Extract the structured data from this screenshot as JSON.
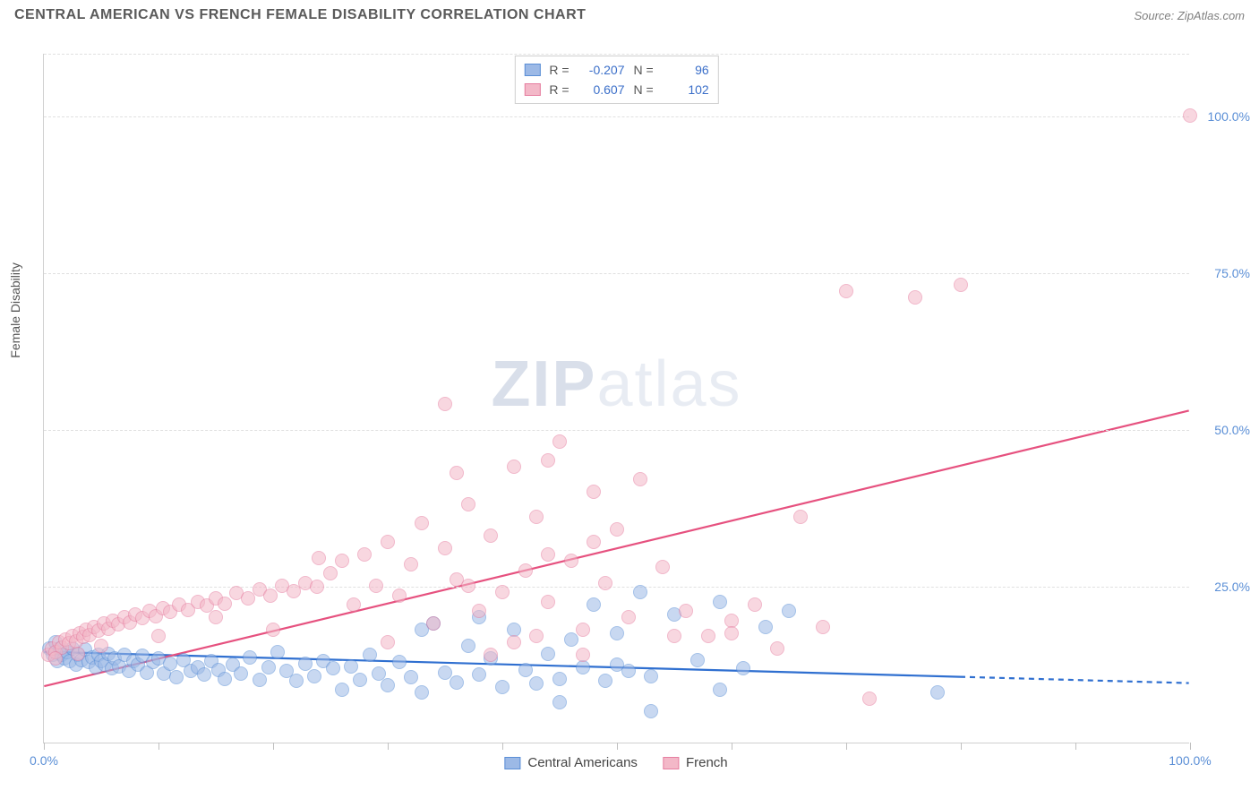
{
  "header": {
    "title": "CENTRAL AMERICAN VS FRENCH FEMALE DISABILITY CORRELATION CHART",
    "source": "Source: ZipAtlas.com"
  },
  "watermark": {
    "left": "ZIP",
    "right": "atlas"
  },
  "chart": {
    "type": "scatter",
    "background_color": "#ffffff",
    "grid_color": "#e0e0e0",
    "axis_color": "#d0d0d0",
    "tick_label_color": "#5b8fd6",
    "tick_fontsize": 14,
    "y_label": "Female Disability",
    "y_label_fontsize": 14,
    "xlim": [
      0,
      100
    ],
    "ylim": [
      0,
      110
    ],
    "x_ticks": [
      0,
      10,
      20,
      30,
      40,
      50,
      60,
      70,
      80,
      90,
      100
    ],
    "x_tick_labels": {
      "0": "0.0%",
      "100": "100.0%"
    },
    "y_ticks": [
      25,
      50,
      75,
      100
    ],
    "y_tick_labels": {
      "25": "25.0%",
      "50": "50.0%",
      "75": "75.0%",
      "100": "100.0%"
    },
    "marker_radius": 8,
    "marker_opacity": 0.55,
    "trend_line_width": 2.2,
    "series": [
      {
        "name": "Central Americans",
        "fill_color": "#9cb9e6",
        "stroke_color": "#5b8fd6",
        "line_color": "#2f6fd0",
        "R": "-0.207",
        "N": "96",
        "trend": {
          "x1": 0,
          "y1": 14.5,
          "x2": 80,
          "y2": 10.5,
          "dash_after_x": 80,
          "x3": 100,
          "y3": 9.5
        },
        "points": [
          [
            0.5,
            15
          ],
          [
            0.8,
            14
          ],
          [
            1,
            16
          ],
          [
            1.2,
            13
          ],
          [
            1.4,
            15
          ],
          [
            1.6,
            14
          ],
          [
            1.8,
            13.5
          ],
          [
            2,
            14.5
          ],
          [
            2.3,
            13
          ],
          [
            2.5,
            15
          ],
          [
            2.8,
            12.5
          ],
          [
            3,
            14
          ],
          [
            3.3,
            13.2
          ],
          [
            3.6,
            14.8
          ],
          [
            3.9,
            12.8
          ],
          [
            4.2,
            13.6
          ],
          [
            4.5,
            12
          ],
          [
            4.8,
            14
          ],
          [
            5,
            13
          ],
          [
            5.3,
            12.5
          ],
          [
            5.6,
            14.2
          ],
          [
            5.9,
            11.8
          ],
          [
            6.2,
            13.4
          ],
          [
            6.6,
            12.2
          ],
          [
            7,
            14
          ],
          [
            7.4,
            11.5
          ],
          [
            7.8,
            13
          ],
          [
            8.2,
            12.4
          ],
          [
            8.6,
            13.8
          ],
          [
            9,
            11.2
          ],
          [
            9.5,
            12.8
          ],
          [
            10,
            13.5
          ],
          [
            10.5,
            11
          ],
          [
            11,
            12.6
          ],
          [
            11.6,
            10.5
          ],
          [
            12.2,
            13.2
          ],
          [
            12.8,
            11.4
          ],
          [
            13.4,
            12
          ],
          [
            14,
            10.8
          ],
          [
            14.6,
            13
          ],
          [
            15.2,
            11.6
          ],
          [
            15.8,
            10.2
          ],
          [
            16.5,
            12.4
          ],
          [
            17.2,
            11
          ],
          [
            18,
            13.6
          ],
          [
            18.8,
            10
          ],
          [
            19.6,
            12
          ],
          [
            20.4,
            14.5
          ],
          [
            21.2,
            11.4
          ],
          [
            22,
            9.8
          ],
          [
            22.8,
            12.6
          ],
          [
            23.6,
            10.6
          ],
          [
            24.4,
            13
          ],
          [
            25.2,
            11.8
          ],
          [
            26,
            8.5
          ],
          [
            26.8,
            12.2
          ],
          [
            27.6,
            10
          ],
          [
            28.4,
            14
          ],
          [
            29.2,
            11
          ],
          [
            30,
            9.2
          ],
          [
            31,
            12.8
          ],
          [
            32,
            10.4
          ],
          [
            33,
            8
          ],
          [
            34,
            19
          ],
          [
            35,
            11.2
          ],
          [
            36,
            9.6
          ],
          [
            37,
            15.5
          ],
          [
            38,
            10.8
          ],
          [
            39,
            13.4
          ],
          [
            40,
            8.8
          ],
          [
            41,
            18
          ],
          [
            42,
            11.6
          ],
          [
            43,
            9.4
          ],
          [
            44,
            14.2
          ],
          [
            45,
            10.2
          ],
          [
            46,
            16.5
          ],
          [
            47,
            12
          ],
          [
            48,
            22
          ],
          [
            49,
            9.8
          ],
          [
            50,
            17.5
          ],
          [
            51,
            11.4
          ],
          [
            52,
            24
          ],
          [
            53,
            10.6
          ],
          [
            55,
            20.5
          ],
          [
            57,
            13.2
          ],
          [
            59,
            22.5
          ],
          [
            61,
            11.8
          ],
          [
            63,
            18.5
          ],
          [
            53,
            5
          ],
          [
            65,
            21
          ],
          [
            78,
            8
          ],
          [
            59,
            8.5
          ],
          [
            45,
            6.5
          ],
          [
            38,
            20
          ],
          [
            33,
            18
          ],
          [
            50,
            12.5
          ]
        ]
      },
      {
        "name": "French",
        "fill_color": "#f3b8c8",
        "stroke_color": "#e67ea0",
        "line_color": "#e6517f",
        "R": "0.607",
        "N": "102",
        "trend": {
          "x1": 0,
          "y1": 9,
          "x2": 100,
          "y2": 53
        },
        "points": [
          [
            0.4,
            14
          ],
          [
            0.7,
            15
          ],
          [
            1,
            14.5
          ],
          [
            1.3,
            16
          ],
          [
            1.6,
            15.2
          ],
          [
            1.9,
            16.5
          ],
          [
            2.2,
            15.8
          ],
          [
            2.5,
            17
          ],
          [
            2.8,
            16.2
          ],
          [
            3.1,
            17.5
          ],
          [
            3.4,
            16.8
          ],
          [
            3.7,
            18
          ],
          [
            4,
            17.2
          ],
          [
            4.4,
            18.5
          ],
          [
            4.8,
            17.8
          ],
          [
            5.2,
            19
          ],
          [
            5.6,
            18.2
          ],
          [
            6,
            19.5
          ],
          [
            6.5,
            18.8
          ],
          [
            7,
            20
          ],
          [
            7.5,
            19.2
          ],
          [
            8,
            20.5
          ],
          [
            8.6,
            19.8
          ],
          [
            9.2,
            21
          ],
          [
            9.8,
            20.2
          ],
          [
            10.4,
            21.5
          ],
          [
            11,
            20.8
          ],
          [
            11.8,
            22
          ],
          [
            12.6,
            21.2
          ],
          [
            13.4,
            22.5
          ],
          [
            14.2,
            21.8
          ],
          [
            15,
            23
          ],
          [
            15.8,
            22.2
          ],
          [
            16.8,
            23.8
          ],
          [
            17.8,
            23
          ],
          [
            18.8,
            24.5
          ],
          [
            19.8,
            23.5
          ],
          [
            20.8,
            25
          ],
          [
            21.8,
            24.2
          ],
          [
            22.8,
            25.5
          ],
          [
            23.8,
            24.8
          ],
          [
            25,
            27
          ],
          [
            26,
            29
          ],
          [
            27,
            22
          ],
          [
            28,
            30
          ],
          [
            29,
            25
          ],
          [
            30,
            32
          ],
          [
            31,
            23.5
          ],
          [
            32,
            28.5
          ],
          [
            33,
            35
          ],
          [
            34,
            19
          ],
          [
            35,
            31
          ],
          [
            36,
            26
          ],
          [
            37,
            38
          ],
          [
            38,
            21
          ],
          [
            39,
            33
          ],
          [
            40,
            24
          ],
          [
            41,
            44
          ],
          [
            42,
            27.5
          ],
          [
            43,
            36
          ],
          [
            44,
            22.5
          ],
          [
            45,
            48
          ],
          [
            46,
            29
          ],
          [
            47,
            18
          ],
          [
            48,
            40
          ],
          [
            49,
            25.5
          ],
          [
            50,
            34
          ],
          [
            52,
            42
          ],
          [
            54,
            28
          ],
          [
            56,
            21
          ],
          [
            58,
            17
          ],
          [
            60,
            19.5
          ],
          [
            62,
            22
          ],
          [
            64,
            15
          ],
          [
            66,
            36
          ],
          [
            68,
            18.5
          ],
          [
            70,
            72
          ],
          [
            72,
            7
          ],
          [
            76,
            71
          ],
          [
            80,
            73
          ],
          [
            100,
            100
          ],
          [
            35,
            54
          ],
          [
            44,
            45
          ],
          [
            48,
            32
          ],
          [
            30,
            16
          ],
          [
            24,
            29.5
          ],
          [
            20,
            18
          ],
          [
            15,
            20
          ],
          [
            10,
            17
          ],
          [
            5,
            15.5
          ],
          [
            3,
            14.2
          ],
          [
            1,
            13.5
          ],
          [
            55,
            17
          ],
          [
            60,
            17.5
          ],
          [
            36,
            43
          ],
          [
            43,
            17
          ],
          [
            47,
            14
          ],
          [
            51,
            20
          ],
          [
            39,
            14
          ],
          [
            44,
            30
          ],
          [
            37,
            25
          ],
          [
            41,
            16
          ]
        ]
      }
    ],
    "stats_box": {
      "rows": [
        {
          "swatch_fill": "#9cb9e6",
          "swatch_stroke": "#5b8fd6",
          "R_label": "R =",
          "R_val": "-0.207",
          "N_label": "N =",
          "N_val": "96"
        },
        {
          "swatch_fill": "#f3b8c8",
          "swatch_stroke": "#e67ea0",
          "R_label": "R =",
          "R_val": "0.607",
          "N_label": "N =",
          "N_val": "102"
        }
      ]
    },
    "bottom_legend": [
      {
        "swatch_fill": "#9cb9e6",
        "swatch_stroke": "#5b8fd6",
        "label": "Central Americans"
      },
      {
        "swatch_fill": "#f3b8c8",
        "swatch_stroke": "#e67ea0",
        "label": "French"
      }
    ]
  }
}
